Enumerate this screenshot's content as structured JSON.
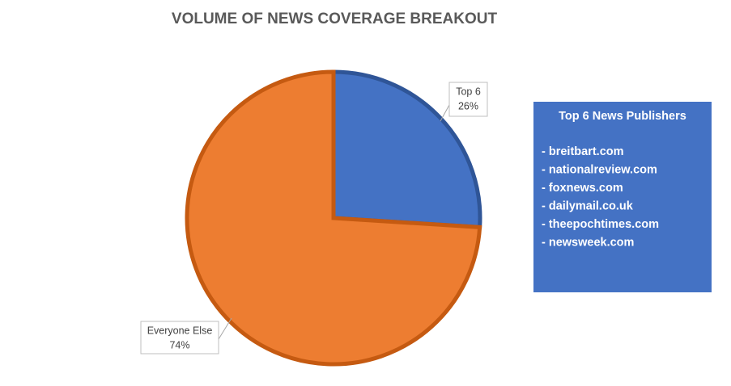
{
  "chart_data": {
    "type": "pie",
    "title": "VOLUME OF NEWS COVERAGE BREAKOUT",
    "categories": [
      "Top 6",
      "Everyone Else"
    ],
    "values": [
      26,
      74
    ],
    "value_labels": [
      "26%",
      "74%"
    ],
    "colors": [
      "#4472c4",
      "#ed7d31"
    ],
    "edge_colors": [
      "#2f5597",
      "#c55a11"
    ],
    "annotation": {
      "title": "Top 6 News Publishers",
      "items": [
        "- breitbart.com",
        "- nationalreview.com",
        "- foxnews.com",
        "- dailymail.co.uk",
        "- theepochtimes.com",
        "- newsweek.com"
      ]
    }
  }
}
